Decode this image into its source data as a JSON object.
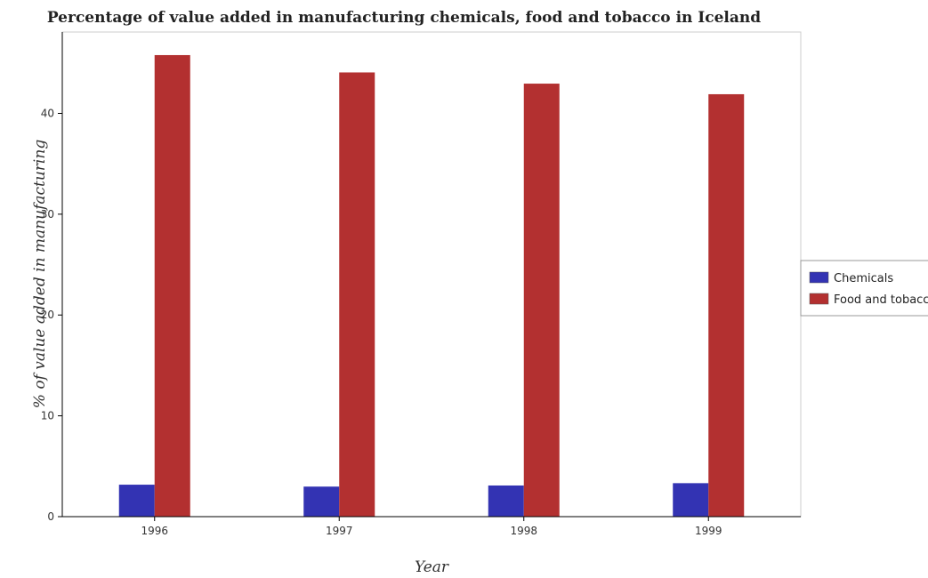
{
  "chart_data": {
    "type": "bar",
    "title": "Percentage of value added in manufacturing chemicals, food and tobacco in Iceland",
    "xlabel": "Year",
    "ylabel": "% of value added in manufacturing",
    "categories": [
      "1996",
      "1997",
      "1998",
      "1999"
    ],
    "series": [
      {
        "name": "Chemicals",
        "color": "#3333b3",
        "values": [
          3.17,
          2.98,
          3.09,
          3.32
        ]
      },
      {
        "name": "Food and tobacco",
        "color": "#b33030",
        "values": [
          45.78,
          44.06,
          42.95,
          41.9
        ]
      }
    ],
    "ylim": [
      0,
      48.07
    ],
    "yticks": [
      0,
      10,
      20,
      30,
      40
    ],
    "grid": false,
    "legend_position": "right"
  }
}
